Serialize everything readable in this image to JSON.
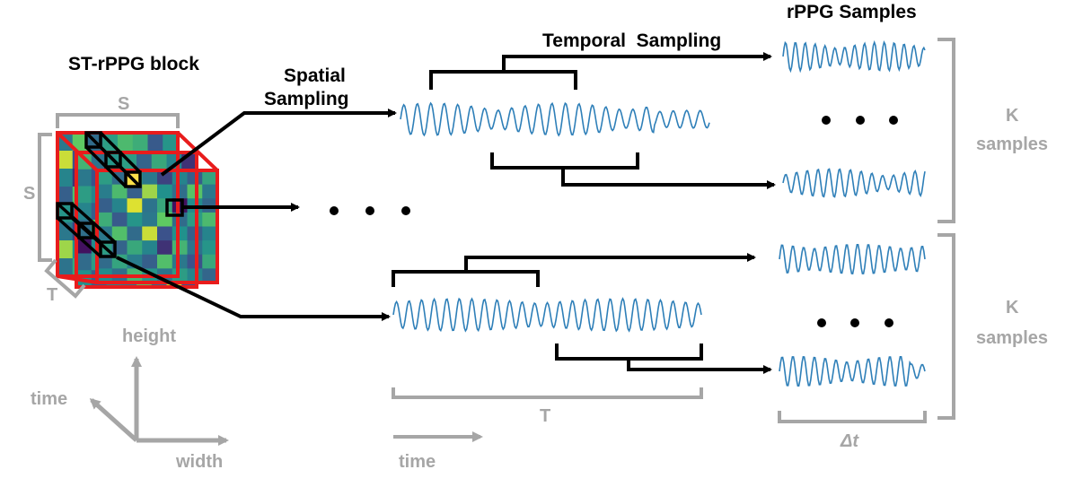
{
  "labels": {
    "block_title": "ST-rPPG block",
    "spatial_sampling_line1": "Spatial",
    "spatial_sampling_line2": "Sampling",
    "temporal_sampling": "Temporal  Sampling",
    "rppg_samples": "rPPG Samples",
    "cube_width_label": "S",
    "cube_height_label": "S",
    "cube_depth_label": "T",
    "k_samples_top_line1": "K",
    "k_samples_top_line2": "samples",
    "k_samples_bottom_line1": "K",
    "k_samples_bottom_line2": "samples",
    "axis_height": "height",
    "axis_time": "time",
    "axis_width": "width",
    "signal_length_label": "T",
    "time_arrow_label": "time",
    "delta_t_label": "Δt"
  },
  "colors": {
    "signal": "#2e7fb8",
    "cube_edge": "#e81c1c",
    "annotation_gray": "#a6a6a6",
    "arrow": "#000000"
  },
  "cube": {
    "grid_size": 8,
    "cell_values": [
      0.55,
      0.35,
      0.62,
      0.4,
      0.2,
      0.45,
      0.3,
      0.58,
      0.42,
      0.68,
      0.3,
      0.85,
      0.5,
      0.36,
      0.72,
      0.4,
      0.3,
      0.45,
      0.95,
      0.38,
      0.6,
      0.05,
      0.48,
      0.33,
      0.62,
      0.28,
      0.52,
      0.4,
      0.75,
      0.35,
      0.55,
      0.68,
      0.4,
      0.7,
      0.35,
      0.92,
      0.25,
      0.5,
      0.3,
      0.45,
      0.55,
      0.32,
      0.6,
      0.45,
      0.15,
      0.65,
      0.38,
      0.52,
      0.35,
      0.58,
      0.42,
      0.3,
      0.7,
      0.4,
      0.25,
      0.6,
      0.48,
      0.36,
      0.66,
      0.52,
      0.38,
      0.55,
      0.45,
      0.33
    ]
  }
}
